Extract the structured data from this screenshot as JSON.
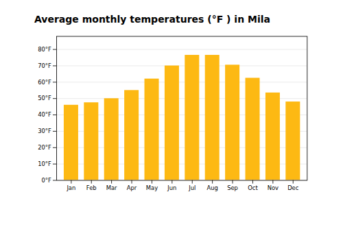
{
  "chart_data": {
    "type": "bar",
    "title": "Average monthly temperatures (°F ) in Mila",
    "categories": [
      "Jan",
      "Feb",
      "Mar",
      "Apr",
      "May",
      "Jun",
      "Jul",
      "Aug",
      "Sep",
      "Oct",
      "Nov",
      "Dec"
    ],
    "values": [
      46,
      47.5,
      50,
      55,
      62,
      70,
      76.5,
      76.5,
      70.5,
      62.5,
      53.5,
      48
    ],
    "color": "#FDB913",
    "ylim": [
      0,
      88
    ],
    "yticks": [
      {
        "value": 0,
        "label": "0°F"
      },
      {
        "value": 10,
        "label": "10°F"
      },
      {
        "value": 20,
        "label": "20°F"
      },
      {
        "value": 30,
        "label": "30°F"
      },
      {
        "value": 40,
        "label": "40°F"
      },
      {
        "value": 50,
        "label": "50°F"
      },
      {
        "value": 60,
        "label": "60°F"
      },
      {
        "value": 70,
        "label": "70°F"
      },
      {
        "value": 80,
        "label": "80°F"
      }
    ],
    "grid": true
  }
}
